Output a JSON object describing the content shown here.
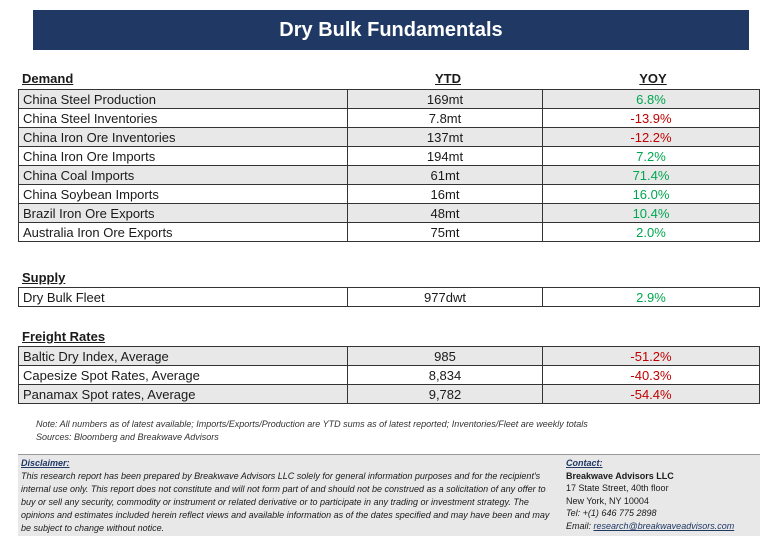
{
  "title": "Dry Bulk Fundamentals",
  "demand": {
    "header": "Demand",
    "ytd_header": "YTD",
    "yoy_header": "YOY",
    "rows": [
      {
        "name": "China Steel Production",
        "ytd": "169mt",
        "yoy": "6.8%"
      },
      {
        "name": "China Steel Inventories",
        "ytd": "7.8mt",
        "yoy": "-13.9%"
      },
      {
        "name": "China Iron Ore Inventories",
        "ytd": "137mt",
        "yoy": "-12.2%"
      },
      {
        "name": "China Iron Ore Imports",
        "ytd": "194mt",
        "yoy": "7.2%"
      },
      {
        "name": "China Coal Imports",
        "ytd": "61mt",
        "yoy": "71.4%"
      },
      {
        "name": "China Soybean Imports",
        "ytd": "16mt",
        "yoy": "16.0%"
      },
      {
        "name": "Brazil Iron Ore Exports",
        "ytd": "48mt",
        "yoy": "10.4%"
      },
      {
        "name": "Australia Iron Ore Exports",
        "ytd": "75mt",
        "yoy": "2.0%"
      }
    ]
  },
  "supply": {
    "header": "Supply",
    "rows": [
      {
        "name": "Dry Bulk Fleet",
        "ytd": "977dwt",
        "yoy": "2.9%"
      }
    ]
  },
  "freight": {
    "header": "Freight Rates",
    "rows": [
      {
        "name": "Baltic Dry Index, Average",
        "ytd": "985",
        "yoy": "-51.2%"
      },
      {
        "name": "Capesize Spot Rates, Average",
        "ytd": "8,834",
        "yoy": "-40.3%"
      },
      {
        "name": "Panamax Spot rates, Average",
        "ytd": "9,782",
        "yoy": "-54.4%"
      }
    ]
  },
  "note": {
    "line1": "Note:  All numbers as of latest available; Imports/Exports/Production are YTD sums as of latest reported; Inventories/Fleet are weekly totals",
    "line2": "Sources: Bloomberg and Breakwave Advisors"
  },
  "disclaimer": {
    "heading": "Disclaimer:",
    "text": "This research report has been prepared by Breakwave Advisors LLC solely for general information purposes and for the recipient's internal use only. This report does not constitute and will not form part of and should not be construed as a solicitation of any offer to buy or sell any security, commodity or instrument or related derivative or to participate in any trading or investment strategy. The opinions and estimates included herein reflect views and available information as of the dates specified and may have been and may be subject to change without notice."
  },
  "contact": {
    "heading": "Contact:",
    "company": "Breakwave Advisors LLC",
    "address1": "17 State Street, 40th floor",
    "address2": "New York, NY 10004",
    "tel": "Tel: +(1) 646 775 2898",
    "email_label": "Email: ",
    "email": "research@breakwaveadvisors.com"
  },
  "colors": {
    "positive": "#00a650",
    "negative": "#c00000",
    "title_bg": "#1f3864"
  }
}
